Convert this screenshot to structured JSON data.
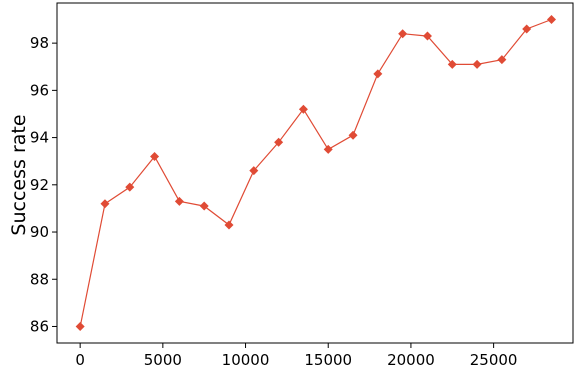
{
  "chart_data": {
    "type": "line",
    "title": "",
    "xlabel": "",
    "ylabel": "Success rate",
    "xlim": [
      -1400,
      29800
    ],
    "ylim": [
      85.3,
      99.7
    ],
    "xticks": [
      0,
      5000,
      10000,
      15000,
      20000,
      25000
    ],
    "yticks": [
      86,
      88,
      90,
      92,
      94,
      96,
      98
    ],
    "grid": false,
    "legend": "none",
    "series": [
      {
        "color": "#e04b35",
        "marker": "diamond",
        "x": [
          0,
          1500,
          3000,
          4500,
          6000,
          7500,
          9000,
          10500,
          12000,
          13500,
          15000,
          16500,
          18000,
          19500,
          21000,
          22500,
          24000,
          25500,
          27000,
          28500
        ],
        "y": [
          86.0,
          91.2,
          91.9,
          93.2,
          91.3,
          91.1,
          90.3,
          92.6,
          93.8,
          95.2,
          93.5,
          94.1,
          96.7,
          98.4,
          98.3,
          97.1,
          97.1,
          97.3,
          98.6,
          99.0
        ]
      }
    ]
  }
}
